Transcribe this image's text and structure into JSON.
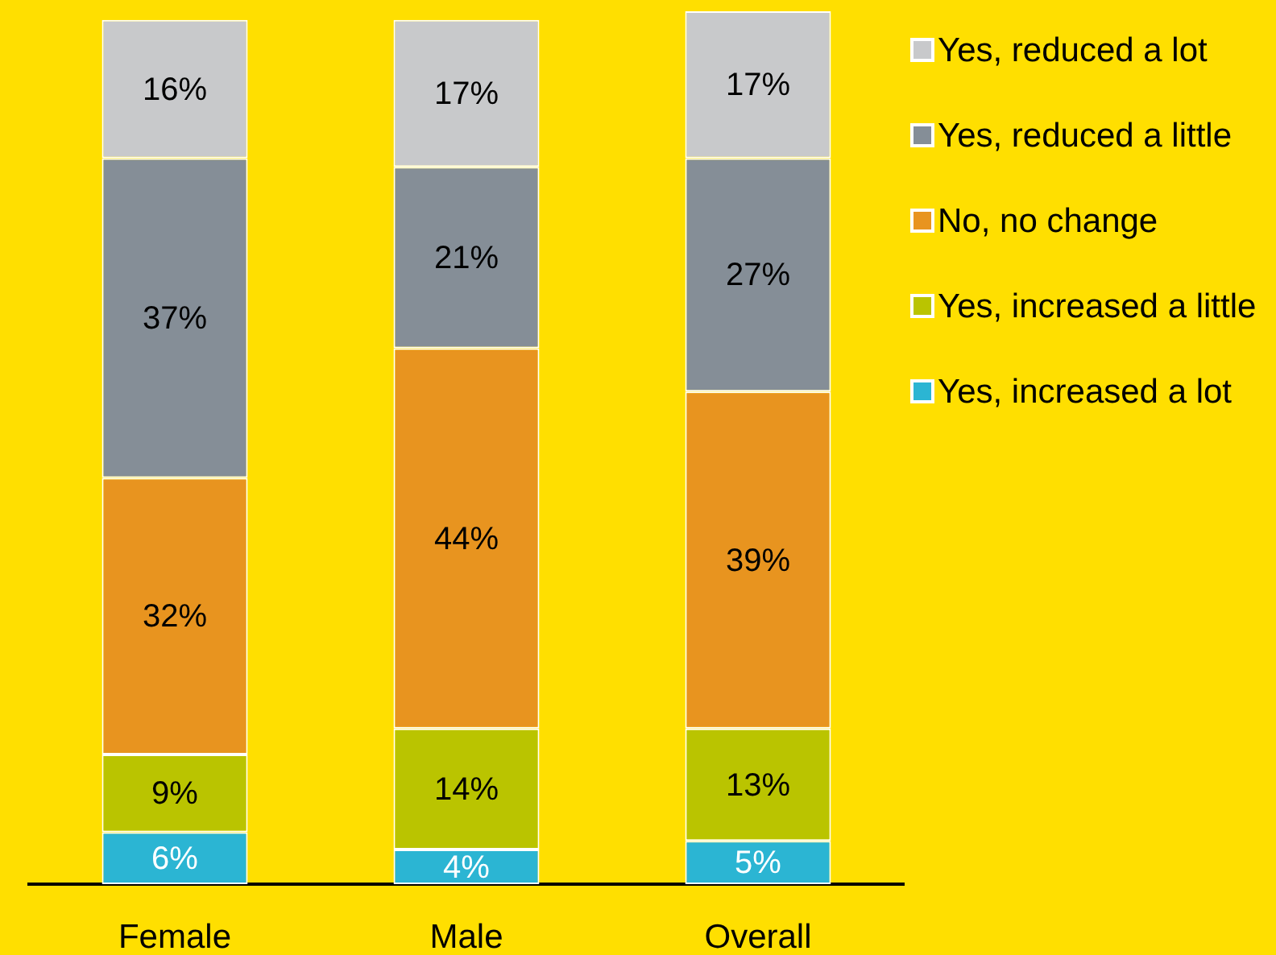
{
  "chart_data": {
    "type": "bar",
    "stacked": true,
    "categories": [
      "Female",
      "Male",
      "Overall"
    ],
    "series": [
      {
        "name": "Yes, increased a lot",
        "color": "#2bb5d3",
        "values": [
          6,
          4,
          5
        ],
        "value_labels": [
          "6%",
          "4%",
          "5%"
        ]
      },
      {
        "name": "Yes, increased a little",
        "color": "#bac400",
        "values": [
          9,
          14,
          13
        ],
        "value_labels": [
          "9%",
          "14%",
          "13%"
        ]
      },
      {
        "name": "No, no change",
        "color": "#e8941f",
        "values": [
          32,
          44,
          39
        ],
        "value_labels": [
          "32%",
          "44%",
          "39%"
        ]
      },
      {
        "name": "Yes, reduced a little",
        "color": "#858e97",
        "values": [
          37,
          21,
          27
        ],
        "value_labels": [
          "37%",
          "21%",
          "27%"
        ]
      },
      {
        "name": "Yes, reduced a lot",
        "color": "#c8c9cb",
        "values": [
          16,
          17,
          17
        ],
        "value_labels": [
          "16%",
          "17%",
          "17%"
        ]
      }
    ],
    "legend": "top right",
    "tick_labels": "x"
  }
}
